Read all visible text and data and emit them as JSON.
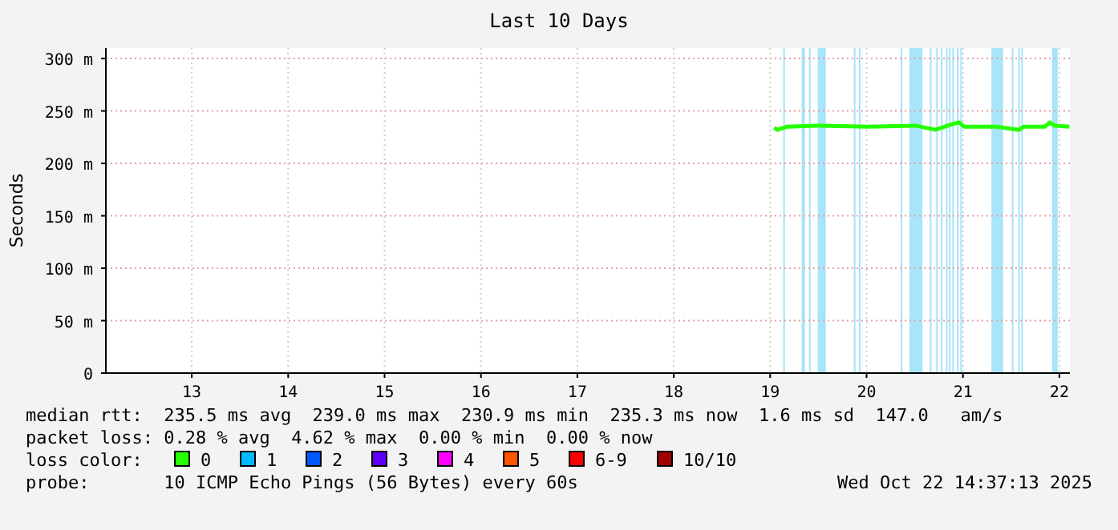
{
  "chart_data": {
    "type": "line",
    "title": "Last 10 Days",
    "ylabel": "Seconds",
    "legend_title": "loss color:",
    "legend": "bottom",
    "grid": true,
    "marker": "none",
    "line_style": "solid",
    "xlim": [
      "2025-10-12T14:37",
      "2025-10-22T14:37"
    ],
    "xticks": [
      {
        "value": "2025-10-13T12:00",
        "label": "13"
      },
      {
        "value": "2025-10-14T12:00",
        "label": "14"
      },
      {
        "value": "2025-10-15T12:00",
        "label": "15"
      },
      {
        "value": "2025-10-16T12:00",
        "label": "16"
      },
      {
        "value": "2025-10-17T12:00",
        "label": "17"
      },
      {
        "value": "2025-10-18T12:00",
        "label": "18"
      },
      {
        "value": "2025-10-19T12:00",
        "label": "19"
      },
      {
        "value": "2025-10-20T12:00",
        "label": "20"
      },
      {
        "value": "2025-10-21T12:00",
        "label": "21"
      },
      {
        "value": "2025-10-22T12:00",
        "label": "22"
      }
    ],
    "ylim": [
      0,
      310
    ],
    "yticks": [
      0,
      {
        "value": 50,
        "label": "50 m"
      },
      {
        "value": 100,
        "label": "100 m"
      },
      {
        "value": 150,
        "label": "150 m"
      },
      {
        "value": 200,
        "label": "200 m"
      },
      {
        "value": 250,
        "label": "250 m"
      },
      {
        "value": 300,
        "label": "300 m"
      }
    ],
    "x": [
      "2025-10-19T13:00",
      "2025-10-19T13:50",
      "2025-10-19T16:15",
      "2025-10-20T00:15",
      "2025-10-20T12:15",
      "2025-10-21T00:15",
      "2025-10-21T05:05",
      "2025-10-21T07:30",
      "2025-10-21T09:50",
      "2025-10-21T11:05",
      "2025-10-21T12:15",
      "2025-10-21T20:20",
      "2025-10-22T01:55",
      "2025-10-22T03:10",
      "2025-10-22T08:25",
      "2025-10-22T09:35",
      "2025-10-22T10:50",
      "2025-10-22T14:30"
    ],
    "series": [
      {
        "name": "0",
        "color": "#26ff00",
        "values": [
          234,
          232,
          235,
          236,
          235,
          236,
          232,
          235,
          238,
          239,
          235,
          235,
          232,
          235,
          235,
          239,
          236,
          235
        ]
      },
      {
        "name": "1",
        "color": "#00b8ff",
        "values": [
          null,
          null,
          null,
          null,
          null,
          null,
          null,
          null,
          null,
          null,
          null,
          null,
          null,
          null,
          null,
          null,
          null,
          null
        ]
      },
      {
        "name": "2",
        "color": "#0059ff",
        "values": [
          null,
          null,
          null,
          null,
          null,
          null,
          null,
          null,
          null,
          null,
          null,
          null,
          null,
          null,
          null,
          null,
          null,
          null
        ]
      },
      {
        "name": "3",
        "color": "#5e00ff",
        "values": [
          null,
          null,
          null,
          null,
          null,
          null,
          null,
          null,
          null,
          null,
          null,
          null,
          null,
          null,
          null,
          null,
          null,
          null
        ]
      },
      {
        "name": "4",
        "color": "#ff00ff",
        "values": [
          null,
          null,
          null,
          null,
          null,
          null,
          null,
          null,
          null,
          null,
          null,
          null,
          null,
          null,
          null,
          null,
          null,
          null
        ]
      },
      {
        "name": "5",
        "color": "#ff5500",
        "values": [
          null,
          null,
          null,
          null,
          null,
          null,
          null,
          null,
          null,
          null,
          null,
          null,
          null,
          null,
          null,
          null,
          null,
          null
        ]
      },
      {
        "name": "6-9",
        "color": "#ff0000",
        "values": [
          null,
          null,
          null,
          null,
          null,
          null,
          null,
          null,
          null,
          null,
          null,
          null,
          null,
          null,
          null,
          null,
          null,
          null
        ]
      },
      {
        "name": "10/10",
        "color": "#a10000",
        "values": [
          null,
          null,
          null,
          null,
          null,
          null,
          null,
          null,
          null,
          null,
          null,
          null,
          null,
          null,
          null,
          null,
          null,
          null
        ]
      }
    ],
    "bands": [
      {
        "axis": "x",
        "from": "2025-10-19T15:15",
        "to": "2025-10-19T15:40",
        "color": "#a8e4fa"
      },
      {
        "axis": "x",
        "from": "2025-10-19T19:50",
        "to": "2025-10-19T20:40",
        "color": "#a8e4fa"
      },
      {
        "axis": "x",
        "from": "2025-10-19T21:40",
        "to": "2025-10-19T22:05",
        "color": "#a8e4fa"
      },
      {
        "axis": "x",
        "from": "2025-10-19T23:50",
        "to": "2025-10-20T01:50",
        "color": "#a8e4fa"
      },
      {
        "axis": "x",
        "from": "2025-10-20T08:50",
        "to": "2025-10-20T09:15",
        "color": "#a8e4fa"
      },
      {
        "axis": "x",
        "from": "2025-10-20T10:05",
        "to": "2025-10-20T10:30",
        "color": "#a8e4fa"
      },
      {
        "axis": "x",
        "from": "2025-10-20T20:30",
        "to": "2025-10-20T20:55",
        "color": "#a8e4fa"
      },
      {
        "axis": "x",
        "from": "2025-10-20T22:40",
        "to": "2025-10-21T01:55",
        "color": "#a8e4fa"
      },
      {
        "axis": "x",
        "from": "2025-10-21T03:45",
        "to": "2025-10-21T04:10",
        "color": "#a8e4fa"
      },
      {
        "axis": "x",
        "from": "2025-10-21T05:20",
        "to": "2025-10-21T05:45",
        "color": "#a8e4fa"
      },
      {
        "axis": "x",
        "from": "2025-10-21T06:30",
        "to": "2025-10-21T06:55",
        "color": "#a8e4fa"
      },
      {
        "axis": "x",
        "from": "2025-10-21T07:45",
        "to": "2025-10-21T08:10",
        "color": "#a8e4fa"
      },
      {
        "axis": "x",
        "from": "2025-10-21T08:30",
        "to": "2025-10-21T08:55",
        "color": "#a8e4fa"
      },
      {
        "axis": "x",
        "from": "2025-10-21T09:20",
        "to": "2025-10-21T09:45",
        "color": "#a8e4fa"
      },
      {
        "axis": "x",
        "from": "2025-10-21T10:30",
        "to": "2025-10-21T10:55",
        "color": "#a8e4fa"
      },
      {
        "axis": "x",
        "from": "2025-10-21T11:20",
        "to": "2025-10-21T11:45",
        "color": "#a8e4fa"
      },
      {
        "axis": "x",
        "from": "2025-10-21T19:05",
        "to": "2025-10-21T22:00",
        "color": "#a8e4fa"
      },
      {
        "axis": "x",
        "from": "2025-10-22T00:10",
        "to": "2025-10-22T00:35",
        "color": "#a8e4fa"
      },
      {
        "axis": "x",
        "from": "2025-10-22T01:45",
        "to": "2025-10-22T02:10",
        "color": "#a8e4fa"
      },
      {
        "axis": "x",
        "from": "2025-10-22T02:30",
        "to": "2025-10-22T02:55",
        "color": "#a8e4fa"
      },
      {
        "axis": "x",
        "from": "2025-10-22T10:10",
        "to": "2025-10-22T11:35",
        "color": "#a8e4fa"
      }
    ],
    "annotations": [
      "median rtt:  235.5 ms avg  239.0 ms max  230.9 ms min  235.3 ms now  1.6 ms sd  147.0   am/s",
      "packet loss: 0.28 % avg  4.62 % max  0.00 % min  0.00 % now",
      "probe:       10 ICMP Echo Pings (56 Bytes) every 60s",
      "Wed Oct 22 14:37:13 2025"
    ]
  }
}
